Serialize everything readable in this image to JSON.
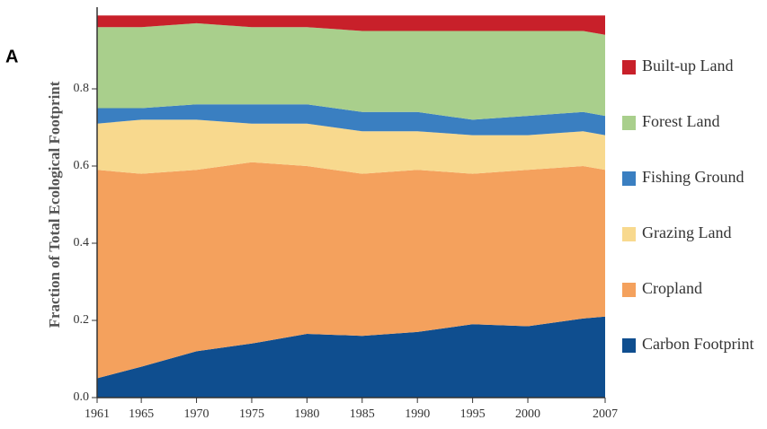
{
  "chart_data": {
    "type": "stacked_area",
    "panel_label": "A",
    "y_label": "Fraction of Total Ecological Footprint",
    "x": [
      1961,
      1965,
      1970,
      1975,
      1980,
      1985,
      1990,
      1995,
      2000,
      2005,
      2007
    ],
    "xlim": [
      1961,
      2007
    ],
    "xticks": [
      1961,
      1965,
      1970,
      1975,
      1980,
      1985,
      1990,
      1995,
      2000,
      2007
    ],
    "ylim": [
      0,
      1
    ],
    "yticks": [
      {
        "value": 0,
        "label": "0.0"
      },
      0.2,
      0.4,
      0.6,
      0.8
    ],
    "series": [
      {
        "name": "Carbon Footprint",
        "color": "#0f4e8f",
        "values": [
          0.05,
          0.08,
          0.12,
          0.14,
          0.165,
          0.16,
          0.17,
          0.19,
          0.185,
          0.205,
          0.21
        ]
      },
      {
        "name": "Cropland",
        "color": "#f4a15d",
        "values": [
          0.54,
          0.5,
          0.47,
          0.47,
          0.435,
          0.42,
          0.42,
          0.39,
          0.405,
          0.395,
          0.38
        ]
      },
      {
        "name": "Grazing Land",
        "color": "#f8d98e",
        "values": [
          0.12,
          0.14,
          0.13,
          0.1,
          0.11,
          0.11,
          0.1,
          0.1,
          0.09,
          0.09,
          0.09
        ]
      },
      {
        "name": "Fishing Ground",
        "color": "#3a7fc1",
        "values": [
          0.04,
          0.03,
          0.04,
          0.05,
          0.05,
          0.05,
          0.05,
          0.04,
          0.05,
          0.05,
          0.05
        ]
      },
      {
        "name": "Forest Land",
        "color": "#a9cf8c",
        "values": [
          0.21,
          0.21,
          0.21,
          0.2,
          0.2,
          0.21,
          0.21,
          0.23,
          0.22,
          0.21,
          0.21
        ]
      },
      {
        "name": "Built-up Land",
        "color": "#c8202a",
        "values": [
          0.03,
          0.03,
          0.02,
          0.03,
          0.03,
          0.04,
          0.04,
          0.04,
          0.04,
          0.04,
          0.05
        ]
      }
    ]
  }
}
